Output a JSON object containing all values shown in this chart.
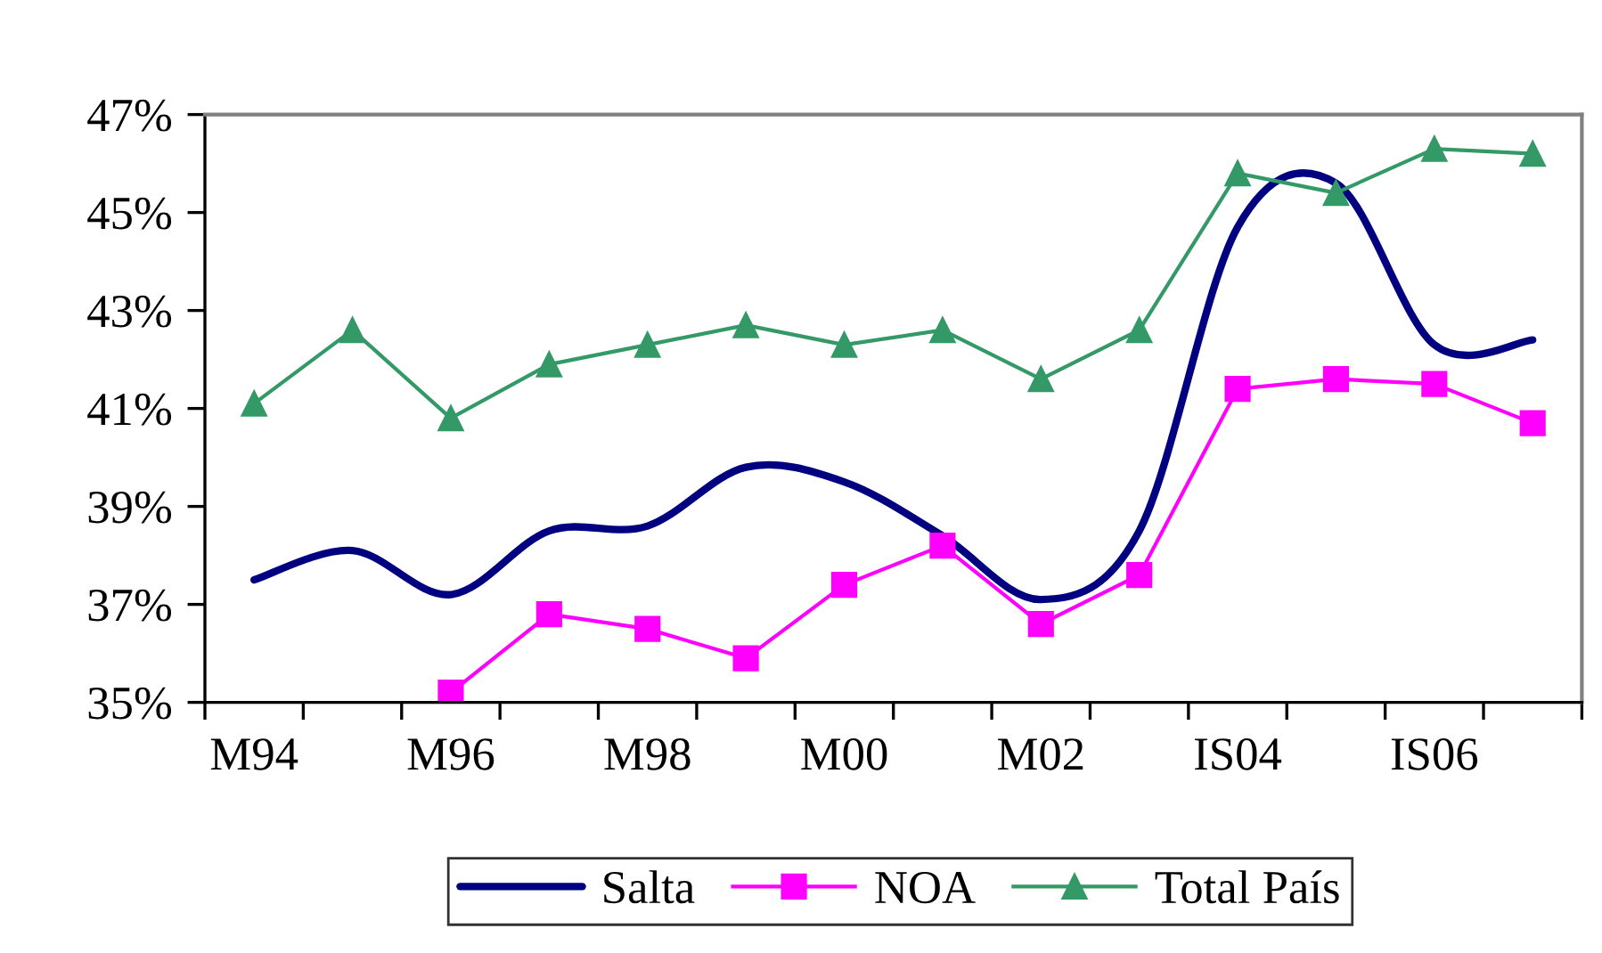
{
  "chart_data": {
    "type": "line",
    "categories": [
      "M94",
      null,
      "M96",
      null,
      "M98",
      null,
      "M00",
      null,
      "M02",
      null,
      "IS04",
      null,
      "IS06",
      null
    ],
    "series": [
      {
        "name": "Salta",
        "color": "#000080",
        "marker": "none",
        "values": [
          37.5,
          38.1,
          37.2,
          38.5,
          38.6,
          39.8,
          39.5,
          38.4,
          37.1,
          38.5,
          44.7,
          45.6,
          42.3,
          42.4
        ]
      },
      {
        "name": "NOA",
        "color": "#ff00ff",
        "marker": "square",
        "values": [
          null,
          null,
          35.2,
          36.8,
          36.5,
          35.9,
          37.4,
          38.2,
          36.6,
          37.6,
          41.4,
          41.6,
          41.5,
          40.7
        ]
      },
      {
        "name": "Total País",
        "color": "#339966",
        "marker": "triangle",
        "values": [
          41.1,
          42.6,
          40.8,
          41.9,
          42.3,
          42.7,
          42.3,
          42.6,
          41.6,
          42.6,
          45.8,
          45.4,
          46.3,
          46.2
        ]
      }
    ],
    "ylim": [
      35,
      47
    ],
    "yticks": [
      {
        "value": 35,
        "label": "35%"
      },
      {
        "value": 37,
        "label": "37%"
      },
      {
        "value": 39,
        "label": "39%"
      },
      {
        "value": 41,
        "label": "41%"
      },
      {
        "value": 43,
        "label": "43%"
      },
      {
        "value": 45,
        "label": "45%"
      },
      {
        "value": 47,
        "label": "47%"
      }
    ],
    "grid": false,
    "legend": "bottom",
    "line_style": "solid"
  }
}
